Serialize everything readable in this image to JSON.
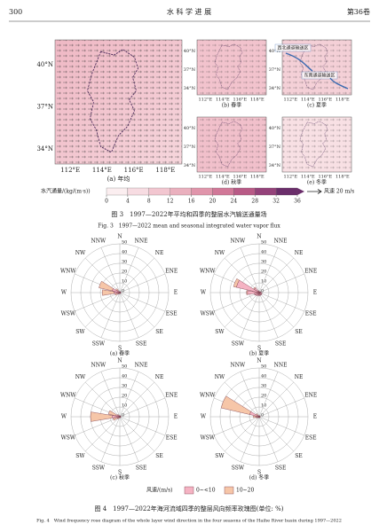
{
  "header": {
    "page": "300",
    "journal": "水 科 学 进 展",
    "volume": "第36卷"
  },
  "figure3": {
    "maps": [
      {
        "label": "(a) 年均"
      },
      {
        "label": "(b) 春季"
      },
      {
        "label": "(c) 夏季"
      },
      {
        "label": "(d) 秋季"
      },
      {
        "label": "(e) 冬季"
      }
    ],
    "lat_labels": [
      "40°N",
      "37°N",
      "34°N"
    ],
    "lon_labels": [
      "112°E",
      "114°E",
      "116°E",
      "118°E"
    ],
    "annotations": [
      "西北通道输送区",
      "东南通道输送区"
    ],
    "colorbar": {
      "title": "水汽通量/(kg/(m·s))",
      "ticks": [
        0,
        4,
        8,
        12,
        16,
        20,
        24,
        28,
        32,
        36
      ],
      "colors": [
        "#fbeef0",
        "#f7dce2",
        "#f2c6d0",
        "#eab0be",
        "#e095ab",
        "#d17898",
        "#b85a86",
        "#94427a",
        "#6a2d6a"
      ]
    },
    "wind_scale": "风速 20 m/s",
    "caption_cn": "图 3　1997—2022年平均和四季的整层水汽输送通量场",
    "caption_en": "Fig. 3　1997—2022 mean and seasonal integrated water vapor flux"
  },
  "figure4": {
    "directions": [
      "N",
      "NNE",
      "NE",
      "ENE",
      "E",
      "ESE",
      "SE",
      "SSE",
      "S",
      "SSW",
      "SW",
      "WSW",
      "W",
      "WNW",
      "NW",
      "NNW"
    ],
    "rlim": [
      0,
      50
    ],
    "rticks": [
      0,
      10,
      20,
      30,
      40,
      50
    ],
    "legend_title": "风速/(m/s)",
    "bins": [
      {
        "name": "0~<10",
        "color": "#f5b3c3"
      },
      {
        "name": "10~20",
        "color": "#f6c6a8"
      }
    ],
    "seasons": [
      {
        "label": "(a) 春季",
        "values": [
          [
            1,
            1,
            1,
            1,
            1,
            1,
            1,
            1,
            1,
            1,
            2,
            3,
            6,
            8,
            3,
            1
          ],
          [
            0,
            0,
            0,
            0,
            0,
            0,
            0,
            0,
            0,
            0,
            0,
            2,
            12,
            14,
            2,
            0
          ]
        ]
      },
      {
        "label": "(b) 夏季",
        "values": [
          [
            1,
            1,
            1,
            2,
            2,
            3,
            3,
            3,
            3,
            3,
            4,
            5,
            12,
            24,
            6,
            2
          ],
          [
            0,
            0,
            0,
            0,
            0,
            0,
            0,
            0,
            0,
            0,
            0,
            0,
            1,
            3,
            1,
            0
          ]
        ]
      },
      {
        "label": "(c) 秋季",
        "values": [
          [
            1,
            1,
            1,
            1,
            1,
            1,
            1,
            1,
            1,
            1,
            2,
            3,
            8,
            4,
            2,
            1
          ],
          [
            0,
            0,
            0,
            0,
            0,
            0,
            0,
            0,
            0,
            0,
            1,
            4,
            22,
            8,
            1,
            0
          ]
        ]
      },
      {
        "label": "(d) 冬季",
        "values": [
          [
            1,
            1,
            1,
            1,
            1,
            1,
            1,
            1,
            1,
            1,
            1,
            2,
            3,
            10,
            2,
            1
          ],
          [
            0,
            0,
            0,
            0,
            0,
            0,
            0,
            0,
            0,
            0,
            0,
            1,
            3,
            30,
            2,
            0
          ]
        ]
      }
    ],
    "caption_cn": "图 4　1997—2022年海河流域四季的整层风向频率玫瑰图(单位: %)",
    "caption_en": "Fig. 4　Wind frequency rose diagram of the whole layer wind direction in the four seasons of the Haihe River basin during 1997—2022"
  }
}
